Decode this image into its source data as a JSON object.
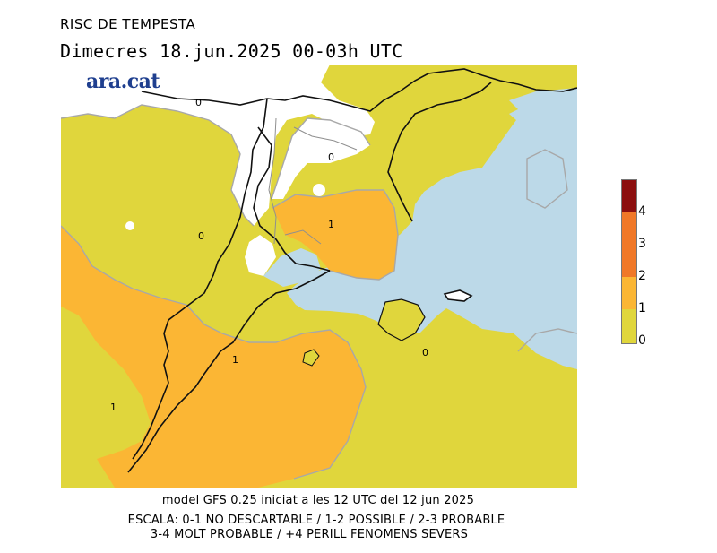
{
  "header": {
    "title": "RISC DE TEMPESTA",
    "subtitle": "Dimecres   18.jun.2025 00-03h UTC"
  },
  "logo": {
    "text": "ara.cat"
  },
  "map": {
    "colors": {
      "sea": "#bcd9e8",
      "level_0": "#ffffff",
      "level_1": "#e0d63c",
      "level_2": "#fbb634",
      "level_3": "#f07828",
      "level_4": "#cc4a14",
      "level_max": "#8c0f0f",
      "border": "#111111",
      "contour": "#a8a8a8"
    },
    "contour_labels": [
      {
        "id": "label-0-north",
        "text": "0"
      },
      {
        "id": "label-0-pyrenees",
        "text": "0"
      },
      {
        "id": "label-1-catalonia",
        "text": "1"
      },
      {
        "id": "label-1-valencia",
        "text": "1"
      },
      {
        "id": "label-1-west",
        "text": "1"
      },
      {
        "id": "label-0-mallorca",
        "text": "0"
      },
      {
        "id": "label-0-top",
        "text": "0"
      }
    ]
  },
  "legend": {
    "levels": [
      "0",
      "1",
      "2",
      "3",
      "4"
    ],
    "colors": [
      "#e0d63c",
      "#fbb634",
      "#f07828",
      "#cc4a14",
      "#8c0f0f"
    ]
  },
  "footer": {
    "line1": "model GFS 0.25 iniciat a les 12 UTC del 12 jun 2025",
    "line2": "ESCALA: 0-1 NO DESCARTABLE / 1-2 POSSIBLE / 2-3 PROBABLE",
    "line3": "3-4 MOLT PROBABLE / +4 PERILL FENOMENS SEVERS"
  }
}
